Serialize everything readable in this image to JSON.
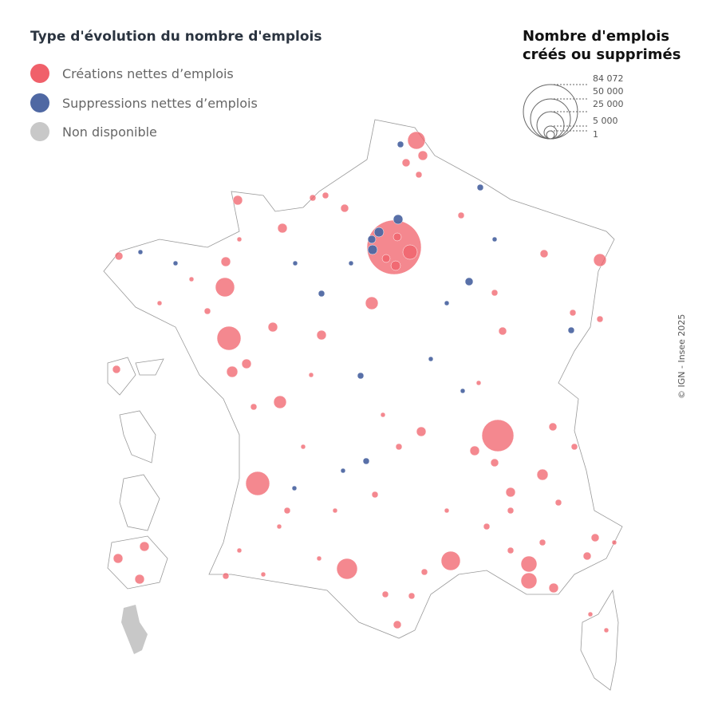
{
  "legend_type": {
    "title": "Type d'évolution du nombre d'emplois",
    "items": [
      {
        "label": "Créations nettes d’emplois",
        "color": "#f0606a"
      },
      {
        "label": "Suppressions nettes d’emplois",
        "color": "#4f68a3"
      },
      {
        "label": "Non disponible",
        "color": "#c8c8c8"
      }
    ]
  },
  "legend_size": {
    "title_line1": "Nombre d'emplois",
    "title_line2": "créés ou supprimés",
    "values": [
      "84 072",
      "50 000",
      "25 000",
      "5 000",
      "1"
    ]
  },
  "credit": "© IGN - Insee 2025"
}
